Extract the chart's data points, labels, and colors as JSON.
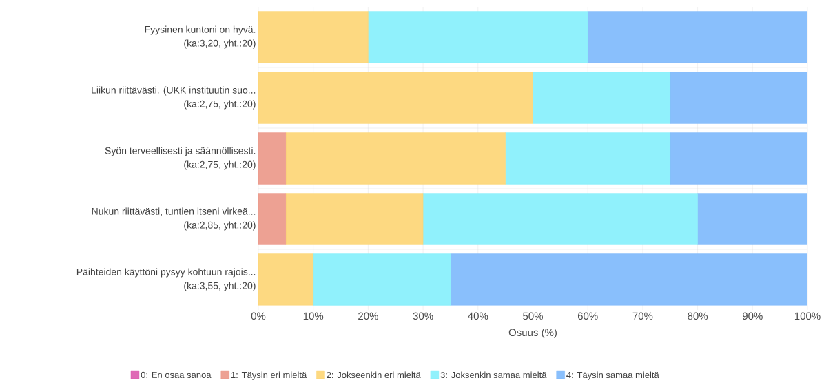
{
  "chart_data": {
    "type": "bar",
    "orientation": "horizontal",
    "stacked": true,
    "categories": [
      "Fyysinen kuntoni on hyvä.\n(ka:3,20, yht.:20)",
      "Liikun riittävästi. (UKK instituutin suo...\n(ka:2,75, yht.:20)",
      "Syön terveellisesti ja säännöllisesti.\n(ka:2,75, yht.:20)",
      "Nukun riittävästi, tuntien itseni virkeä...\n(ka:2,85, yht.:20)",
      "Päihteiden käyttöni pysyy kohtuun rajois...\n(ka:3,55, yht.:20)"
    ],
    "series": [
      {
        "name": "0: En osaa sanoa",
        "color": "#d94fa8",
        "values": [
          0,
          0,
          0,
          0,
          0
        ]
      },
      {
        "name": "1: Täysin eri mieltä",
        "color": "#ea9080",
        "values": [
          0,
          0,
          5,
          5,
          0
        ]
      },
      {
        "name": "2: Jokseenkin eri mieltä",
        "color": "#fdd26b",
        "values": [
          20,
          50,
          40,
          25,
          10
        ]
      },
      {
        "name": "3: Joksenkin samaa mieltä",
        "color": "#7deefb",
        "values": [
          40,
          25,
          30,
          50,
          25
        ]
      },
      {
        "name": "4: Täysin samaa mieltä",
        "color": "#74b4fb",
        "values": [
          40,
          25,
          25,
          20,
          65
        ]
      }
    ],
    "xlim": [
      0,
      100
    ],
    "xticks": [
      {
        "value": 0,
        "label": "0%"
      },
      {
        "value": 10,
        "label": "10%"
      },
      {
        "value": 20,
        "label": "20%"
      },
      {
        "value": 30,
        "label": "30%"
      },
      {
        "value": 40,
        "label": "40%"
      },
      {
        "value": 50,
        "label": "50%"
      },
      {
        "value": 60,
        "label": "60%"
      },
      {
        "value": 70,
        "label": "70%"
      },
      {
        "value": 80,
        "label": "80%"
      },
      {
        "value": 90,
        "label": "90%"
      },
      {
        "value": 100,
        "label": "100%"
      }
    ],
    "xlabel": "Osuus (%)",
    "grid": true,
    "legend": "bottom"
  }
}
